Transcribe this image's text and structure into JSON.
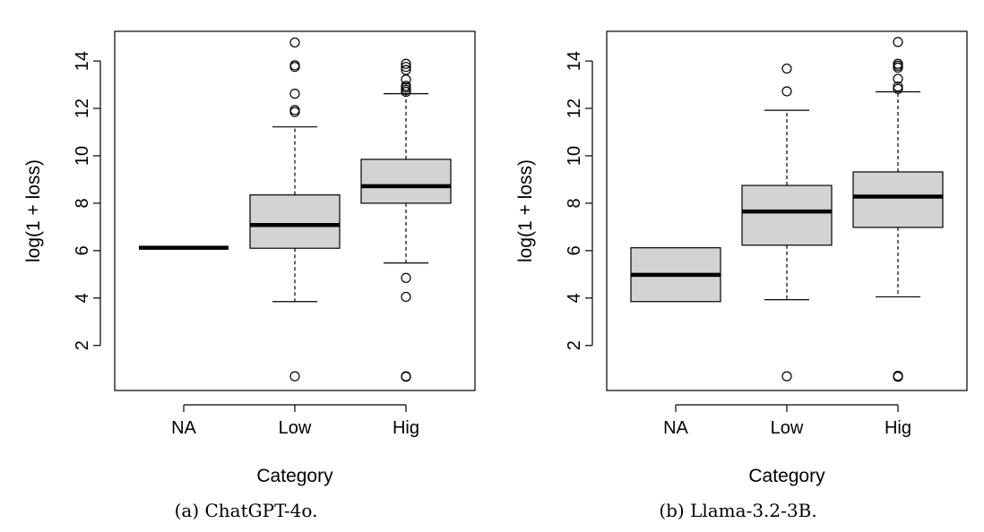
{
  "chart_data": [
    {
      "type": "boxplot",
      "caption": "(a) ChatGPT-4o.",
      "xlabel": "Category",
      "ylabel": "log(1 + loss)",
      "categories": [
        "NA",
        "Low",
        "Hig"
      ],
      "y_ticks": [
        2,
        4,
        6,
        8,
        10,
        12,
        14
      ],
      "ylim": [
        0.1,
        15.25
      ],
      "boxes": [
        {
          "category": "NA",
          "whisker_low": 6.12,
          "q1": 6.12,
          "median": 6.12,
          "q3": 6.12,
          "whisker_high": 6.12,
          "outliers": []
        },
        {
          "category": "Low",
          "whisker_low": 3.85,
          "q1": 6.1,
          "median": 7.08,
          "q3": 8.35,
          "whisker_high": 11.22,
          "outliers": [
            0.7,
            11.85,
            11.93,
            12.62,
            13.75,
            13.82,
            14.78
          ]
        },
        {
          "category": "Hig",
          "whisker_low": 5.48,
          "q1": 8.0,
          "median": 8.72,
          "q3": 9.85,
          "whisker_high": 12.62,
          "outliers": [
            0.68,
            0.7,
            4.05,
            4.85,
            12.7,
            12.78,
            12.88,
            12.95,
            13.22,
            13.62,
            13.75,
            13.88
          ]
        }
      ]
    },
    {
      "type": "boxplot",
      "caption": "(b) Llama-3.2-3B.",
      "xlabel": "Category",
      "ylabel": "log(1 + loss)",
      "categories": [
        "NA",
        "Low",
        "Hig"
      ],
      "y_ticks": [
        2,
        4,
        6,
        8,
        10,
        12,
        14
      ],
      "ylim": [
        0.1,
        15.25
      ],
      "boxes": [
        {
          "category": "NA",
          "whisker_low": 3.85,
          "q1": 3.85,
          "median": 4.98,
          "q3": 6.12,
          "whisker_high": 6.12,
          "outliers": []
        },
        {
          "category": "Low",
          "whisker_low": 3.93,
          "q1": 6.23,
          "median": 7.65,
          "q3": 8.75,
          "whisker_high": 11.92,
          "outliers": [
            0.7,
            12.72,
            13.68
          ]
        },
        {
          "category": "Hig",
          "whisker_low": 4.05,
          "q1": 6.98,
          "median": 8.28,
          "q3": 9.32,
          "whisker_high": 12.7,
          "outliers": [
            0.68,
            0.72,
            12.82,
            12.92,
            13.25,
            13.72,
            13.8,
            13.88,
            14.8
          ]
        }
      ]
    }
  ]
}
